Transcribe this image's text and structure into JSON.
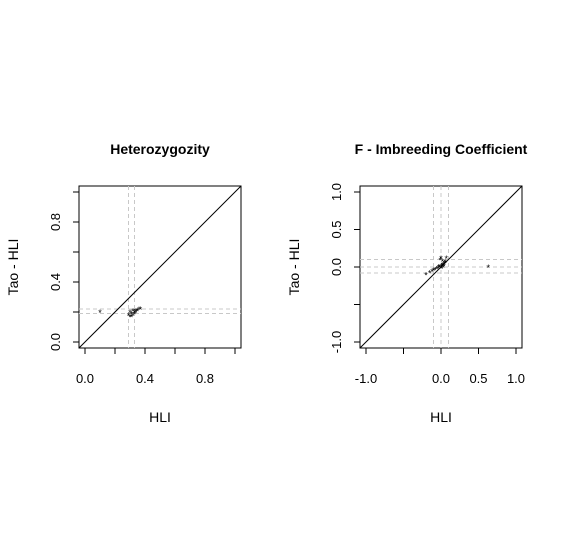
{
  "chart_data": [
    {
      "type": "scatter",
      "title": "Heterozygozity",
      "xlabel": "HLI",
      "ylabel": "Tao - HLI",
      "xlim": [
        -0.04,
        1.04
      ],
      "ylim": [
        -0.04,
        1.04
      ],
      "xticks": [
        0.0,
        0.4,
        0.8
      ],
      "xtick_labels": [
        "0.0",
        "0.4",
        "0.8"
      ],
      "xtick_marks": [
        0.0,
        0.2,
        0.4,
        0.6,
        0.8,
        1.0
      ],
      "yticks": [
        0.0,
        0.4,
        0.8
      ],
      "ytick_labels": [
        "0.0",
        "0.4",
        "0.8"
      ],
      "ytick_marks": [
        0.0,
        0.2,
        0.4,
        0.6,
        0.8,
        1.0
      ],
      "reference_line": "y = x",
      "guides_x": [
        0.29,
        0.33
      ],
      "guides_y": [
        0.19,
        0.22
      ],
      "points": [
        [
          0.1,
          0.2
        ],
        [
          0.29,
          0.18
        ],
        [
          0.3,
          0.17
        ],
        [
          0.31,
          0.19
        ],
        [
          0.3,
          0.2
        ],
        [
          0.32,
          0.18
        ],
        [
          0.33,
          0.2
        ],
        [
          0.34,
          0.21
        ],
        [
          0.35,
          0.21
        ],
        [
          0.36,
          0.22
        ],
        [
          0.37,
          0.22
        ],
        [
          0.32,
          0.21
        ],
        [
          0.34,
          0.2
        ],
        [
          0.31,
          0.17
        ],
        [
          0.33,
          0.19
        ]
      ]
    },
    {
      "type": "scatter",
      "title": "F - Imbreeding Coefficient",
      "xlabel": "HLI",
      "ylabel": "Tao - HLI",
      "xlim": [
        -1.08,
        1.08
      ],
      "ylim": [
        -1.08,
        1.08
      ],
      "xticks": [
        -1.0,
        0.0,
        0.5,
        1.0
      ],
      "xtick_labels": [
        "-1.0",
        "0.0",
        "0.5",
        "1.0"
      ],
      "xtick_marks": [
        -1.0,
        -0.5,
        0.0,
        0.5,
        1.0
      ],
      "yticks": [
        -1.0,
        0.0,
        0.5,
        1.0
      ],
      "ytick_labels": [
        "-1.0",
        "0.0",
        "0.5",
        "1.0"
      ],
      "ytick_marks": [
        -1.0,
        -0.5,
        0.0,
        0.5,
        1.0
      ],
      "reference_line": "y = x",
      "guides_x": [
        -0.1,
        0.0,
        0.1
      ],
      "guides_y": [
        -0.08,
        0.0,
        0.1
      ],
      "points": [
        [
          0.63,
          0.0
        ],
        [
          -0.2,
          -0.1
        ],
        [
          -0.15,
          -0.07
        ],
        [
          -0.12,
          -0.05
        ],
        [
          -0.1,
          -0.04
        ],
        [
          -0.08,
          -0.03
        ],
        [
          -0.06,
          -0.02
        ],
        [
          -0.04,
          -0.01
        ],
        [
          -0.02,
          0.0
        ],
        [
          0.0,
          0.0
        ],
        [
          0.01,
          0.02
        ],
        [
          0.02,
          0.03
        ],
        [
          0.03,
          0.04
        ],
        [
          0.05,
          0.06
        ],
        [
          0.06,
          0.07
        ],
        [
          0.07,
          0.12
        ],
        [
          0.0,
          0.12
        ],
        [
          -0.01,
          0.1
        ],
        [
          0.02,
          0.08
        ],
        [
          0.04,
          0.02
        ],
        [
          -0.03,
          0.01
        ],
        [
          0.01,
          -0.01
        ],
        [
          0.03,
          0.0
        ]
      ]
    }
  ]
}
